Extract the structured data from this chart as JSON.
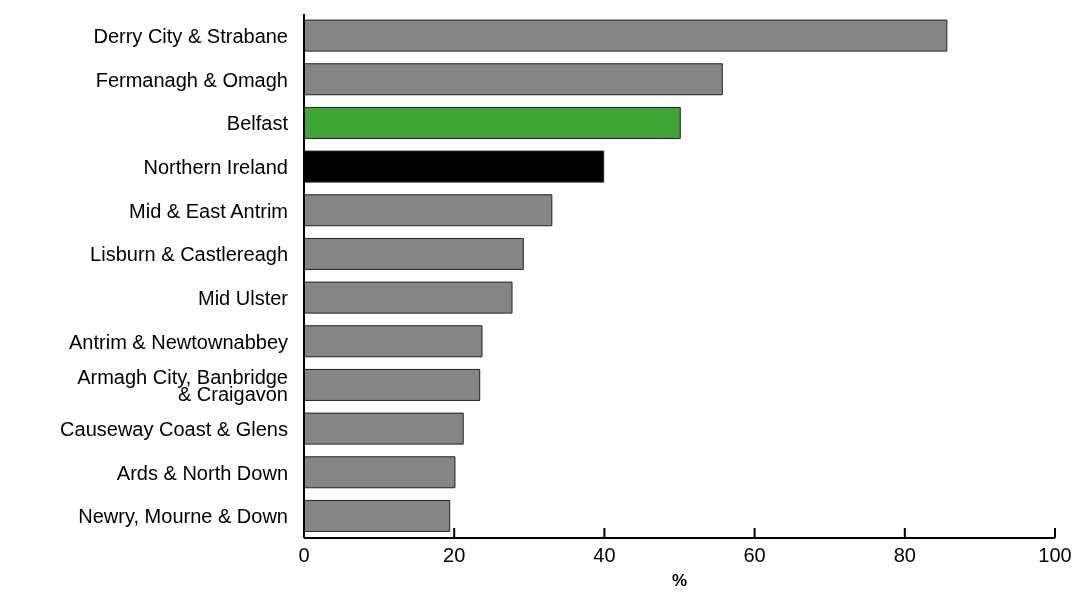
{
  "chart_data": {
    "type": "bar",
    "orientation": "horizontal",
    "xlabel": "%",
    "categories": [
      "Derry City & Strabane",
      "Fermanagh & Omagh",
      "Belfast",
      "Northern Ireland",
      "Mid & East Antrim",
      "Lisburn & Castlereagh",
      "Mid Ulster",
      "Antrim & Newtownabbey",
      "Armagh City, Banbridge & Craigavon",
      "Causeway Coast & Glens",
      "Ards & North Down",
      "Newry, Mourne & Down"
    ],
    "values": [
      85.6,
      55.7,
      50.1,
      39.9,
      33.0,
      29.2,
      27.7,
      23.7,
      23.4,
      21.2,
      20.1,
      19.4
    ],
    "colors": [
      "#858585",
      "#858585",
      "#3fa535",
      "#000000",
      "#858585",
      "#858585",
      "#858585",
      "#858585",
      "#858585",
      "#858585",
      "#858585",
      "#858585"
    ],
    "xlim": [
      0,
      100
    ],
    "xticks": [
      0,
      20,
      40,
      60,
      80,
      100
    ],
    "grid": false,
    "legend": false
  }
}
